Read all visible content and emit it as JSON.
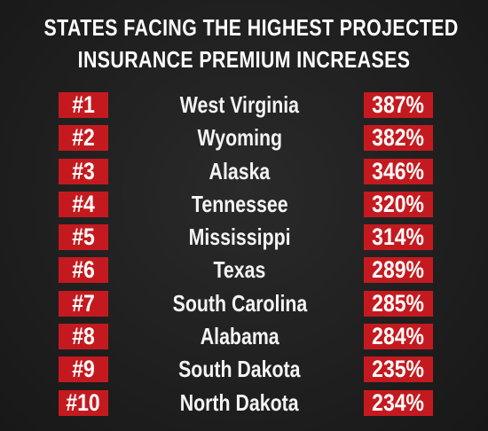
{
  "title": {
    "line1": "STATES FACING THE HIGHEST PROJECTED",
    "line2": "INSURANCE PREMIUM INCREASES"
  },
  "colors": {
    "background": "#1f1f1f",
    "badge": "#c41a1f",
    "text": "#ffffff"
  },
  "rows": [
    {
      "rank": "#1",
      "state": "West Virginia",
      "increase": "387%"
    },
    {
      "rank": "#2",
      "state": "Wyoming",
      "increase": "382%"
    },
    {
      "rank": "#3",
      "state": "Alaska",
      "increase": "346%"
    },
    {
      "rank": "#4",
      "state": "Tennessee",
      "increase": "320%"
    },
    {
      "rank": "#5",
      "state": "Mississippi",
      "increase": "314%"
    },
    {
      "rank": "#6",
      "state": "Texas",
      "increase": "289%"
    },
    {
      "rank": "#7",
      "state": "South Carolina",
      "increase": "285%"
    },
    {
      "rank": "#8",
      "state": "Alabama",
      "increase": "284%"
    },
    {
      "rank": "#9",
      "state": "South Dakota",
      "increase": "235%"
    },
    {
      "rank": "#10",
      "state": "North Dakota",
      "increase": "234%"
    }
  ]
}
